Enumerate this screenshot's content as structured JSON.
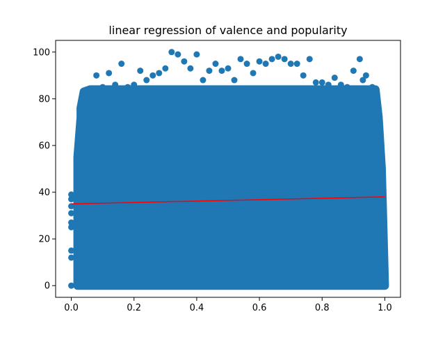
{
  "chart_data": {
    "type": "scatter",
    "title": "linear regression of valence and popularity",
    "xlabel": "",
    "ylabel": "",
    "xlim": [
      -0.05,
      1.05
    ],
    "ylim": [
      -5,
      105
    ],
    "x_ticks": [
      0.0,
      0.2,
      0.4,
      0.6,
      0.8,
      1.0
    ],
    "x_tick_labels": [
      "0.0",
      "0.2",
      "0.4",
      "0.6",
      "0.8",
      "1.0"
    ],
    "y_ticks": [
      0,
      20,
      40,
      60,
      80,
      100
    ],
    "y_tick_labels": [
      "0",
      "20",
      "40",
      "60",
      "80",
      "100"
    ],
    "grid": false,
    "legend": "none",
    "series": [
      {
        "kind": "scatter",
        "color": "#1f77b4",
        "points": [
          [
            0.0,
            0
          ],
          [
            0.0,
            12
          ],
          [
            0.0,
            15
          ],
          [
            0.0,
            25
          ],
          [
            0.0,
            27
          ],
          [
            0.0,
            31
          ],
          [
            0.0,
            34
          ],
          [
            0.0,
            37
          ],
          [
            0.0,
            39
          ],
          [
            0.02,
            4
          ],
          [
            0.03,
            76
          ],
          [
            0.04,
            83
          ],
          [
            0.06,
            84
          ],
          [
            0.08,
            90
          ],
          [
            0.1,
            85
          ],
          [
            0.12,
            91
          ],
          [
            0.14,
            86
          ],
          [
            0.16,
            95
          ],
          [
            0.18,
            85
          ],
          [
            0.2,
            86
          ],
          [
            0.22,
            92
          ],
          [
            0.24,
            88
          ],
          [
            0.26,
            90
          ],
          [
            0.28,
            91
          ],
          [
            0.3,
            93
          ],
          [
            0.32,
            100
          ],
          [
            0.34,
            99
          ],
          [
            0.36,
            96
          ],
          [
            0.38,
            93
          ],
          [
            0.4,
            99
          ],
          [
            0.42,
            88
          ],
          [
            0.44,
            92
          ],
          [
            0.46,
            95
          ],
          [
            0.48,
            92
          ],
          [
            0.5,
            93
          ],
          [
            0.52,
            88
          ],
          [
            0.54,
            97
          ],
          [
            0.56,
            95
          ],
          [
            0.58,
            91
          ],
          [
            0.6,
            96
          ],
          [
            0.62,
            95
          ],
          [
            0.64,
            97
          ],
          [
            0.66,
            98
          ],
          [
            0.68,
            97
          ],
          [
            0.7,
            95
          ],
          [
            0.72,
            95
          ],
          [
            0.74,
            90
          ],
          [
            0.76,
            97
          ],
          [
            0.78,
            87
          ],
          [
            0.8,
            87
          ],
          [
            0.82,
            86
          ],
          [
            0.84,
            89
          ],
          [
            0.86,
            86
          ],
          [
            0.88,
            85
          ],
          [
            0.9,
            92
          ],
          [
            0.92,
            97
          ],
          [
            0.93,
            88
          ],
          [
            0.94,
            90
          ],
          [
            0.96,
            85
          ],
          [
            0.97,
            84
          ],
          [
            0.99,
            21
          ],
          [
            1.0,
            4
          ],
          [
            1.0,
            1
          ]
        ]
      },
      {
        "kind": "regression_line",
        "color": "#ff0000",
        "x": [
          0.0,
          1.0
        ],
        "y": [
          35.0,
          38.0
        ]
      }
    ]
  }
}
